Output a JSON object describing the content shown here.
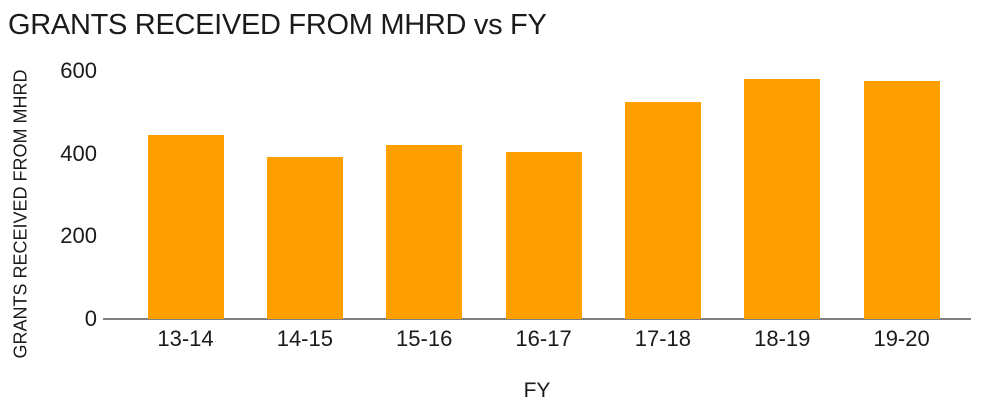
{
  "chart_data": {
    "type": "bar",
    "title": "GRANTS RECEIVED FROM MHRD vs FY",
    "xlabel": "FY",
    "ylabel": "GRANTS RECEIVED FROM MHRD",
    "categories": [
      "13-14",
      "14-15",
      "15-16",
      "16-17",
      "17-18",
      "18-19",
      "19-20"
    ],
    "values": [
      445,
      392,
      420,
      405,
      525,
      580,
      576
    ],
    "ytick_labels": [
      "0",
      "200",
      "400",
      "600"
    ],
    "yticks": [
      0,
      200,
      400,
      600
    ],
    "ylim": [
      0,
      600
    ],
    "grid": false,
    "legend": "none",
    "background": "#ffffff",
    "colors": {
      "bar": "#ffa000",
      "axis_line": "#7f7f7f",
      "text": "#1b1b1b"
    }
  }
}
